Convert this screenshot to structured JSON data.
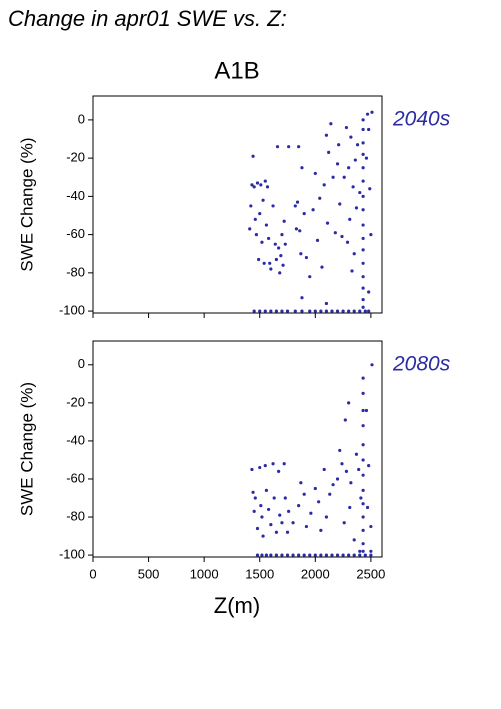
{
  "title": "Change in apr01 SWE vs. Z:",
  "subtitle": "A1B",
  "xlabel": "Z(m)",
  "chart_data": [
    {
      "type": "scatter",
      "label": "2040s",
      "ylabel": "SWE Change (%)",
      "color": "#2b2ba6",
      "xlim": [
        0,
        2600
      ],
      "ylim": [
        -101,
        12.5
      ],
      "xticks": [
        0,
        500,
        1000,
        1500,
        2000,
        2500
      ],
      "yticks": [
        0,
        -20,
        -40,
        -60,
        -80,
        -100
      ],
      "x": [
        1410,
        1420,
        1430,
        1440,
        1450,
        1460,
        1470,
        1480,
        1490,
        1500,
        1510,
        1520,
        1530,
        1540,
        1550,
        1560,
        1570,
        1580,
        1590,
        1600,
        1620,
        1640,
        1650,
        1660,
        1670,
        1680,
        1690,
        1700,
        1710,
        1720,
        1730,
        1760,
        1820,
        1830,
        1840,
        1850,
        1860,
        1870,
        1880,
        1900,
        1920,
        1950,
        1980,
        2000,
        2020,
        2040,
        2060,
        2080,
        2100,
        2110,
        2120,
        2140,
        2160,
        2180,
        2200,
        2210,
        2220,
        2240,
        2260,
        2280,
        2290,
        2300,
        2310,
        2320,
        2330,
        2340,
        2350,
        2360,
        2370,
        2380,
        2400,
        2430,
        2430,
        2430,
        2430,
        2430,
        2430,
        2430,
        2430,
        2430,
        2430,
        2430,
        2430,
        2430,
        2430,
        2430,
        2430,
        2470,
        2480,
        2490,
        2500,
        2510,
        2480,
        2460,
        1450,
        1500,
        1550,
        1600,
        1650,
        1700,
        1750,
        1820,
        1880,
        1950,
        2000,
        2050,
        2100,
        2150,
        2200,
        2250,
        2300,
        2350,
        2400,
        2450,
        2480,
        1880,
        2100
      ],
      "values": [
        -57,
        -45,
        -34,
        -19,
        -35,
        -52,
        -60,
        -33,
        -73,
        -49,
        -34,
        -64,
        -42,
        -75,
        -32,
        -55,
        -35,
        -62,
        -75,
        -78,
        -45,
        -65,
        -73,
        -14,
        -67,
        -80,
        -71,
        -60,
        -76,
        -53,
        -65,
        -14,
        -45,
        -57,
        -43,
        -14,
        -58,
        -70,
        -25,
        -49,
        -72,
        -82,
        -47,
        -28,
        -63,
        -41,
        -77,
        -34,
        -8,
        -54,
        -17,
        -2,
        -30,
        -59,
        -23,
        -13,
        -44,
        -61,
        -30,
        -4,
        -64,
        -25,
        -52,
        -9,
        -79,
        -35,
        -70,
        -21,
        -46,
        -13,
        -38,
        0,
        -5,
        -12,
        -18,
        -25,
        -32,
        -40,
        -47,
        -55,
        -62,
        -68,
        -75,
        -82,
        -88,
        -94,
        -98,
        3,
        -5,
        -36,
        -60,
        4,
        -90,
        -20,
        -100,
        -100,
        -100,
        -100,
        -100,
        -100,
        -100,
        -100,
        -100,
        -100,
        -100,
        -100,
        -100,
        -100,
        -100,
        -100,
        -100,
        -100,
        -100,
        -100,
        -100,
        -93,
        -96
      ]
    },
    {
      "type": "scatter",
      "label": "2080s",
      "ylabel": "SWE Change (%)",
      "color": "#2b2ba6",
      "xlim": [
        0,
        2600
      ],
      "ylim": [
        -101,
        12.5
      ],
      "xticks": [
        0,
        500,
        1000,
        1500,
        2000,
        2500
      ],
      "yticks": [
        0,
        -20,
        -40,
        -60,
        -80,
        -100
      ],
      "x": [
        1430,
        1440,
        1450,
        1460,
        1480,
        1500,
        1510,
        1520,
        1530,
        1550,
        1560,
        1580,
        1600,
        1620,
        1630,
        1650,
        1670,
        1680,
        1700,
        1720,
        1730,
        1750,
        1760,
        1800,
        1850,
        1870,
        1900,
        1920,
        1960,
        2000,
        2030,
        2050,
        2080,
        2100,
        2130,
        2160,
        2200,
        2220,
        2240,
        2260,
        2270,
        2280,
        2300,
        2310,
        2320,
        2350,
        2370,
        2390,
        2410,
        2430,
        2430,
        2430,
        2430,
        2430,
        2430,
        2430,
        2430,
        2430,
        2430,
        2430,
        2430,
        2430,
        2480,
        2500,
        2510,
        2460,
        2470,
        1480,
        1520,
        1560,
        1600,
        1650,
        1700,
        1750,
        1800,
        1850,
        1900,
        1950,
        2000,
        2050,
        2100,
        2150,
        2200,
        2250,
        2300,
        2350,
        2400,
        2450,
        2500,
        2400,
        2500
      ],
      "values": [
        -55,
        -67,
        -77,
        -70,
        -86,
        -54,
        -74,
        -80,
        -90,
        -53,
        -66,
        -76,
        -84,
        -52,
        -70,
        -88,
        -56,
        -79,
        -83,
        -52,
        -70,
        -88,
        -77,
        -83,
        -74,
        -62,
        -68,
        -85,
        -78,
        -65,
        -72,
        -87,
        -55,
        -80,
        -68,
        -63,
        -60,
        -45,
        -52,
        -83,
        -29,
        -56,
        -20,
        -75,
        -62,
        -92,
        -47,
        -55,
        -70,
        -7,
        -15,
        -24,
        -32,
        -42,
        -50,
        -58,
        -66,
        -73,
        -80,
        -87,
        -94,
        -98,
        -53,
        -85,
        0,
        -24,
        -75,
        -100,
        -100,
        -100,
        -100,
        -100,
        -100,
        -100,
        -100,
        -100,
        -100,
        -100,
        -100,
        -100,
        -100,
        -100,
        -100,
        -100,
        -100,
        -100,
        -100,
        -100,
        -100,
        -98,
        -98
      ]
    }
  ]
}
